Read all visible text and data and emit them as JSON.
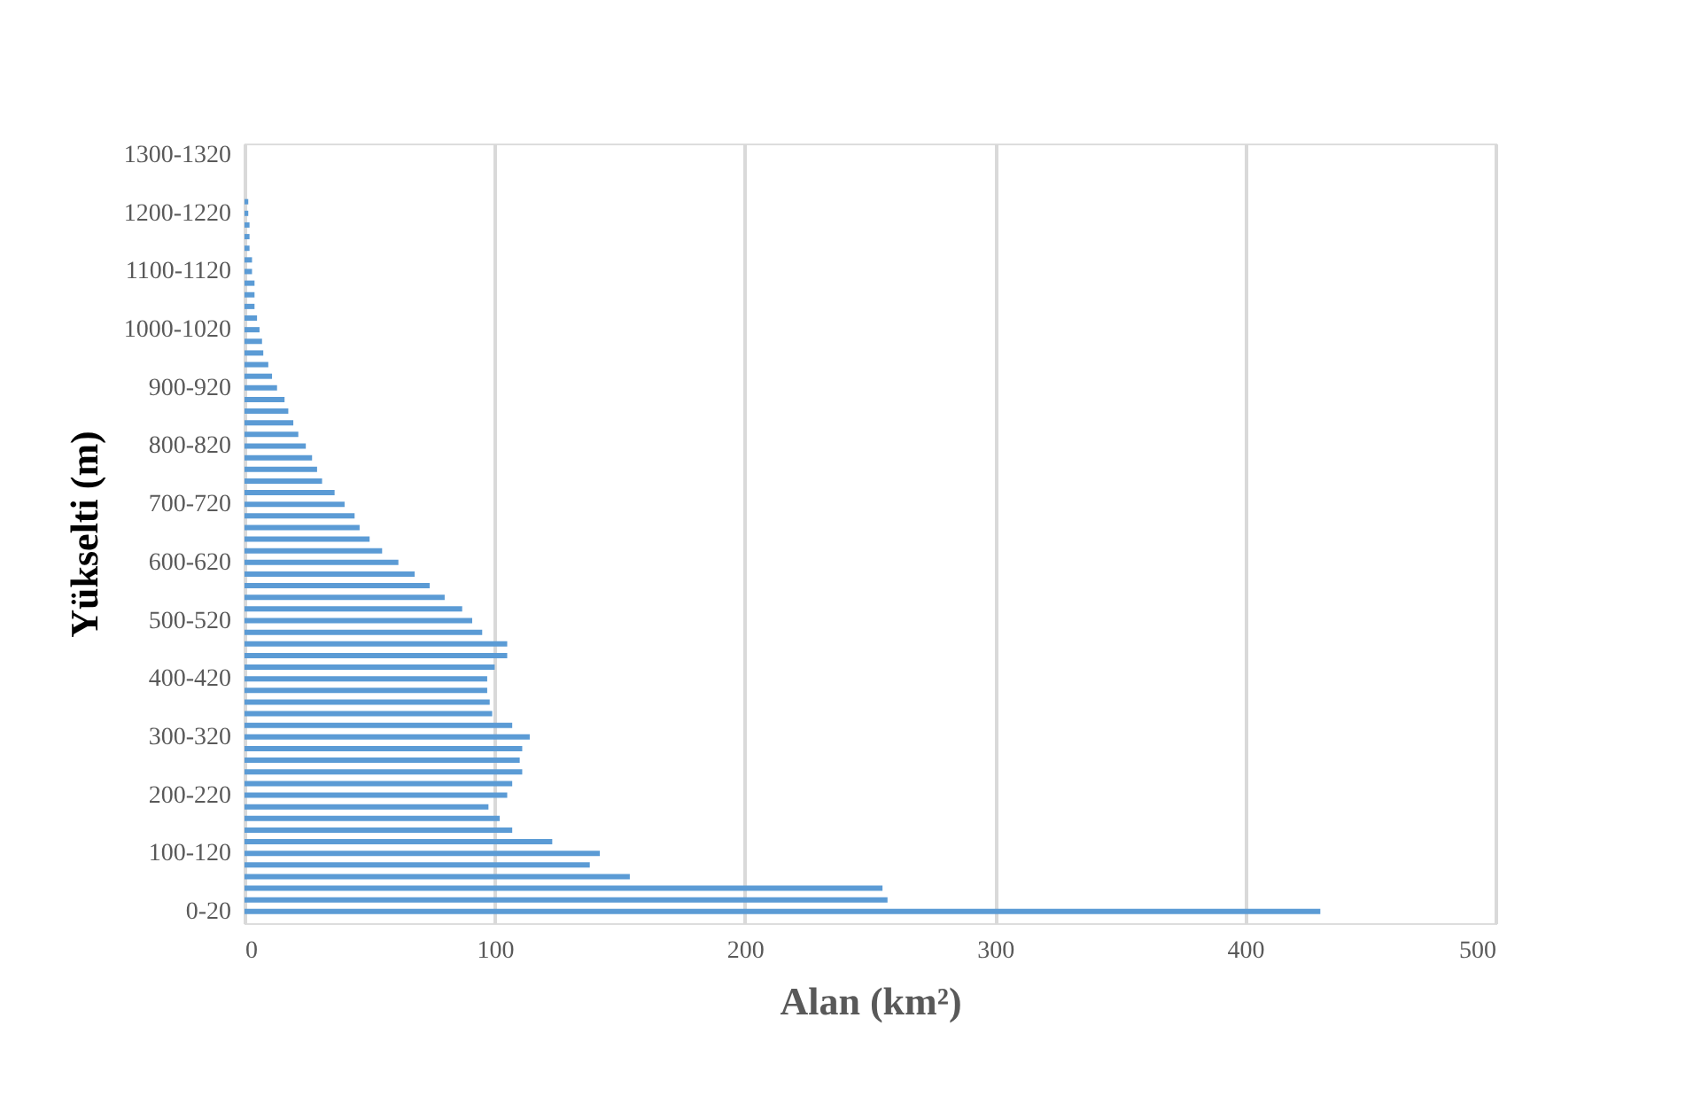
{
  "chart_data": {
    "type": "bar",
    "orientation": "horizontal",
    "xlabel": "Alan (km²)",
    "ylabel": "Yükselti (m)",
    "categories": [
      "1300-1320",
      null,
      null,
      null,
      null,
      "1200-1220",
      null,
      null,
      null,
      null,
      "1100-1120",
      null,
      null,
      null,
      null,
      "1000-1020",
      null,
      null,
      null,
      null,
      "900-920",
      null,
      null,
      null,
      null,
      "800-820",
      null,
      null,
      null,
      null,
      "700-720",
      null,
      null,
      null,
      null,
      "600-620",
      null,
      null,
      null,
      null,
      "500-520",
      null,
      null,
      null,
      null,
      "400-420",
      null,
      null,
      null,
      null,
      "300-320",
      null,
      null,
      null,
      null,
      "200-220",
      null,
      null,
      null,
      null,
      "100-120",
      null,
      null,
      null,
      null,
      "0-20"
    ],
    "values": [
      0,
      0,
      0,
      0,
      1.5,
      1.5,
      2,
      2,
      2,
      3,
      3,
      4,
      4,
      4,
      5,
      6,
      7,
      7.5,
      9.5,
      11,
      13,
      16,
      17.5,
      19.5,
      21.5,
      24.5,
      27,
      29,
      31,
      36,
      40,
      44,
      46,
      50,
      55,
      61.5,
      68,
      74,
      80,
      87,
      91,
      95,
      105,
      105,
      100,
      97,
      97,
      98,
      99,
      107,
      114,
      111,
      110,
      111,
      107,
      105,
      97.5,
      102,
      107,
      123,
      142,
      138,
      154,
      255,
      257,
      430
    ],
    "color": "#5b9bd5",
    "xlim": [
      0,
      500
    ],
    "xticks": [
      0,
      100,
      200,
      300,
      400,
      500
    ],
    "grid": "x"
  }
}
